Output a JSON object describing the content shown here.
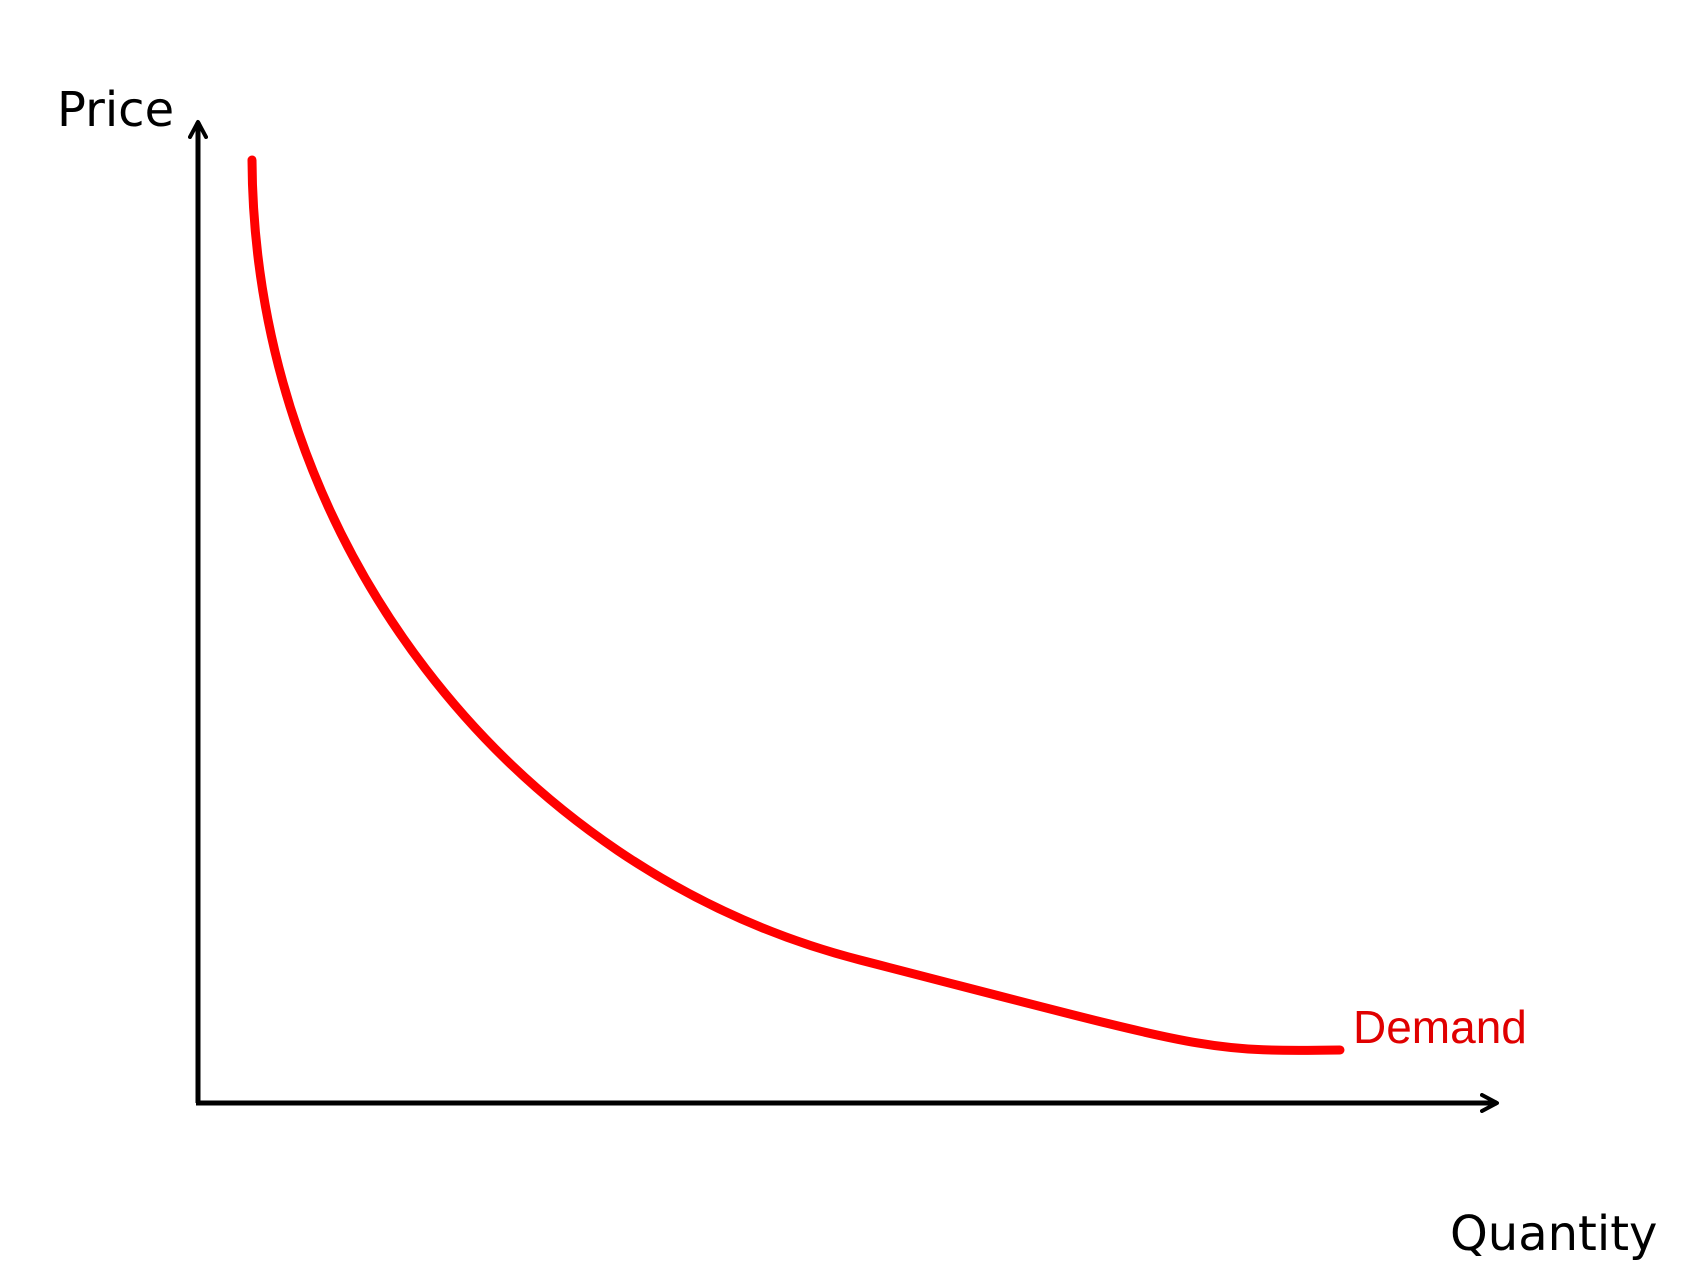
{
  "chart_data": {
    "type": "line",
    "xlabel": "Quantity",
    "ylabel": "Price",
    "series": [
      {
        "name": "Demand",
        "color": "#ff0000",
        "shape": "downward-sloping convex curve"
      }
    ]
  },
  "colors": {
    "axis": "#000000",
    "demand": "#ff0000",
    "demand_label": "#e00000"
  }
}
